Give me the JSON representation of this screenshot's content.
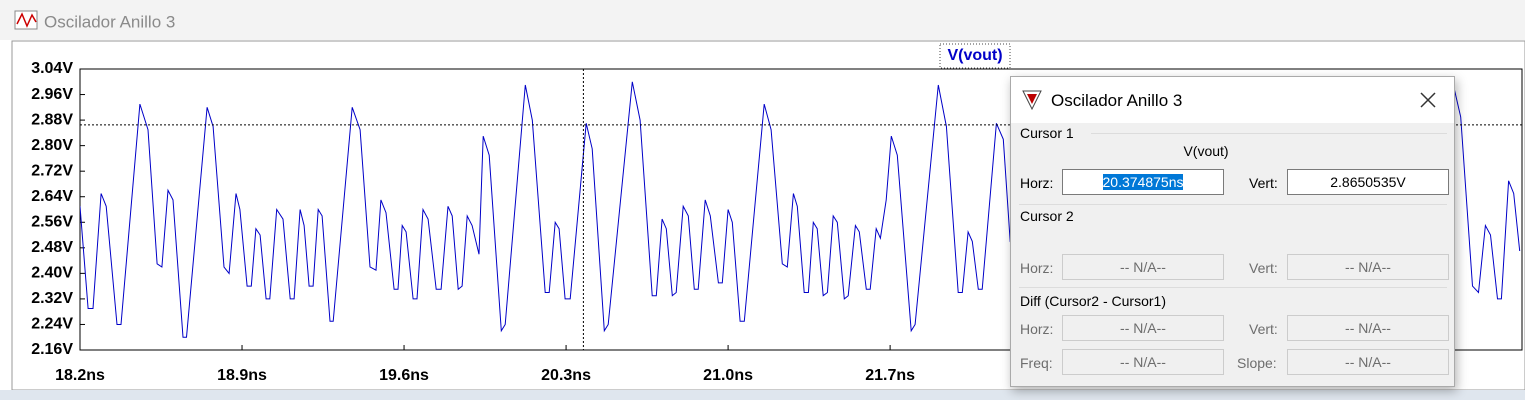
{
  "window": {
    "title": "Oscilador Anillo 3"
  },
  "chart_data": {
    "type": "line",
    "x": [
      18.2,
      18.235,
      18.256,
      18.291,
      18.313,
      18.36,
      18.377,
      18.459,
      18.494,
      18.533,
      18.554,
      18.58,
      18.602,
      18.645,
      18.66,
      18.749,
      18.775,
      18.822,
      18.844,
      18.874,
      18.891,
      18.922,
      18.94,
      18.96,
      18.978,
      19.004,
      19.02,
      19.05,
      19.077,
      19.108,
      19.125,
      19.151,
      19.168,
      19.19,
      19.207,
      19.229,
      19.246,
      19.28,
      19.294,
      19.376,
      19.41,
      19.453,
      19.479,
      19.5,
      19.522,
      19.557,
      19.574,
      19.592,
      19.609,
      19.639,
      19.656,
      19.682,
      19.704,
      19.739,
      19.76,
      19.79,
      19.808,
      19.834,
      19.851,
      19.873,
      19.894,
      19.924,
      19.942,
      19.968,
      20.02,
      20.037,
      20.124,
      20.154,
      20.21,
      20.227,
      20.253,
      20.27,
      20.296,
      20.318,
      20.387,
      20.413,
      20.465,
      20.482,
      20.586,
      20.62,
      20.672,
      20.69,
      20.715,
      20.733,
      20.759,
      20.776,
      20.806,
      20.828,
      20.854,
      20.871,
      20.901,
      20.923,
      20.958,
      20.975,
      21.0,
      21.018,
      21.052,
      21.07,
      21.156,
      21.186,
      21.234,
      21.256,
      21.282,
      21.299,
      21.329,
      21.347,
      21.368,
      21.385,
      21.411,
      21.429,
      21.454,
      21.472,
      21.502,
      21.519,
      21.55,
      21.567,
      21.597,
      21.614,
      21.64,
      21.658,
      21.683,
      21.705,
      21.731,
      21.791,
      21.808,
      21.908,
      21.943,
      21.994,
      22.012,
      22.037,
      22.055,
      22.081,
      22.098,
      22.159,
      22.189,
      22.219,
      24.13,
      24.165,
      24.216,
      24.242,
      24.272,
      24.294,
      24.324,
      24.341,
      24.372,
      24.394,
      24.42
    ],
    "series": [
      {
        "name": "V(vout)",
        "color": "#0000c8",
        "values": [
          2.61,
          2.29,
          2.29,
          2.65,
          2.61,
          2.24,
          2.24,
          2.93,
          2.85,
          2.43,
          2.42,
          2.66,
          2.63,
          2.2,
          2.2,
          2.92,
          2.86,
          2.42,
          2.4,
          2.65,
          2.6,
          2.36,
          2.36,
          2.54,
          2.52,
          2.32,
          2.32,
          2.6,
          2.57,
          2.32,
          2.32,
          2.6,
          2.55,
          2.36,
          2.36,
          2.6,
          2.58,
          2.25,
          2.25,
          2.92,
          2.85,
          2.42,
          2.41,
          2.63,
          2.59,
          2.35,
          2.35,
          2.55,
          2.53,
          2.32,
          2.32,
          2.6,
          2.57,
          2.35,
          2.35,
          2.61,
          2.58,
          2.35,
          2.36,
          2.58,
          2.55,
          2.46,
          2.83,
          2.77,
          2.22,
          2.24,
          2.99,
          2.88,
          2.34,
          2.34,
          2.56,
          2.54,
          2.32,
          2.32,
          2.87,
          2.79,
          2.22,
          2.24,
          3.0,
          2.88,
          2.33,
          2.33,
          2.57,
          2.54,
          2.33,
          2.34,
          2.61,
          2.58,
          2.35,
          2.35,
          2.63,
          2.58,
          2.37,
          2.37,
          2.6,
          2.56,
          2.25,
          2.25,
          2.93,
          2.85,
          2.43,
          2.42,
          2.65,
          2.61,
          2.34,
          2.34,
          2.56,
          2.54,
          2.33,
          2.34,
          2.58,
          2.56,
          2.32,
          2.33,
          2.55,
          2.53,
          2.35,
          2.35,
          2.54,
          2.51,
          2.63,
          2.83,
          2.77,
          2.22,
          2.24,
          2.99,
          2.86,
          2.34,
          2.34,
          2.53,
          2.5,
          2.35,
          2.35,
          2.87,
          2.82,
          2.5,
          3.0,
          2.89,
          2.36,
          2.34,
          2.55,
          2.52,
          2.32,
          2.32,
          2.69,
          2.65,
          2.47
        ]
      }
    ],
    "xlim": [
      18.2,
      24.43
    ],
    "xticks": [
      {
        "value": 18.2,
        "label": "18.2ns"
      },
      {
        "value": 18.9,
        "label": "18.9ns"
      },
      {
        "value": 19.6,
        "label": "19.6ns"
      },
      {
        "value": 20.3,
        "label": "20.3ns"
      },
      {
        "value": 21.0,
        "label": "21.0ns"
      },
      {
        "value": 21.7,
        "label": "21.7ns"
      }
    ],
    "ylim": [
      2.16,
      3.04
    ],
    "yticks": [
      {
        "value": 2.16,
        "label": "2.16V"
      },
      {
        "value": 2.24,
        "label": "2.24V"
      },
      {
        "value": 2.32,
        "label": "2.32V"
      },
      {
        "value": 2.4,
        "label": "2.40V"
      },
      {
        "value": 2.48,
        "label": "2.48V"
      },
      {
        "value": 2.56,
        "label": "2.56V"
      },
      {
        "value": 2.64,
        "label": "2.64V"
      },
      {
        "value": 2.72,
        "label": "2.72V"
      },
      {
        "value": 2.8,
        "label": "2.80V"
      },
      {
        "value": 2.88,
        "label": "2.88V"
      },
      {
        "value": 2.96,
        "label": "2.96V"
      },
      {
        "value": 3.04,
        "label": "3.04V"
      }
    ],
    "cursor": {
      "x": 20.374875,
      "y": 2.8650535
    }
  },
  "dialog": {
    "title": "Oscilador Anillo 3",
    "cursor1": {
      "label": "Cursor 1",
      "trace": "V(vout)",
      "horz_label": "Horz:",
      "horz": "20.374875ns",
      "vert_label": "Vert:",
      "vert": "2.8650535V"
    },
    "cursor2": {
      "label": "Cursor 2",
      "horz_label": "Horz:",
      "horz": "-- N/A--",
      "vert_label": "Vert:",
      "vert": "-- N/A--"
    },
    "diff": {
      "label": "Diff (Cursor2 - Cursor1)",
      "horz_label": "Horz:",
      "horz": "-- N/A--",
      "vert_label": "Vert:",
      "vert": "-- N/A--",
      "freq_label": "Freq:",
      "freq": "-- N/A--",
      "slope_label": "Slope:",
      "slope": "-- N/A--"
    }
  }
}
